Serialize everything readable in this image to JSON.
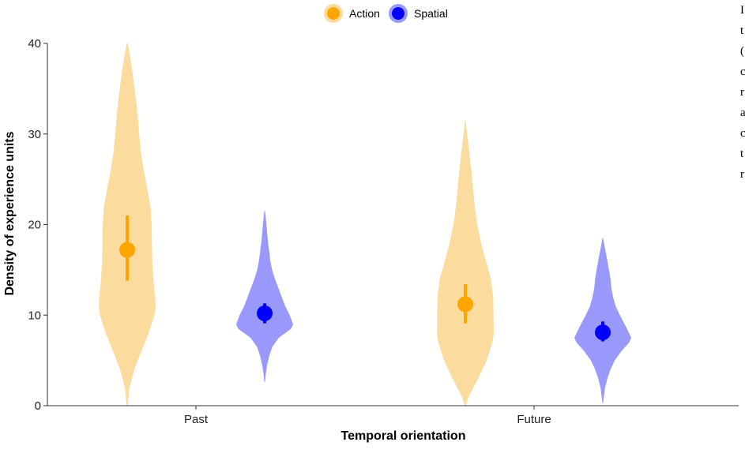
{
  "chart_data": {
    "type": "violin",
    "title": "",
    "xlabel": "Temporal orientation",
    "ylabel": "Density of experience units",
    "categories": [
      "Past",
      "Future"
    ],
    "ylim": [
      0,
      40
    ],
    "yticks": [
      0,
      10,
      20,
      30,
      40
    ],
    "grid": false,
    "legend_position": "top",
    "series": [
      {
        "name": "Action",
        "color": "#ffa500",
        "violin_color": "#fcdc9e",
        "means": [
          17.2,
          11.2
        ],
        "ci_low": [
          13.8,
          9.1
        ],
        "ci_high": [
          21.0,
          13.4
        ],
        "ranges": [
          [
            0.0,
            40.0
          ],
          [
            0.0,
            31.5
          ]
        ],
        "profiles": [
          [
            [
              0,
              0.02
            ],
            [
              2,
              0.08
            ],
            [
              4,
              0.25
            ],
            [
              6,
              0.5
            ],
            [
              8,
              0.75
            ],
            [
              10,
              0.96
            ],
            [
              11,
              1.0
            ],
            [
              12,
              0.98
            ],
            [
              14,
              0.92
            ],
            [
              16,
              0.88
            ],
            [
              18,
              0.87
            ],
            [
              20,
              0.86
            ],
            [
              22,
              0.82
            ],
            [
              24,
              0.7
            ],
            [
              26,
              0.58
            ],
            [
              28,
              0.48
            ],
            [
              30,
              0.42
            ],
            [
              32,
              0.37
            ],
            [
              34,
              0.3
            ],
            [
              36,
              0.22
            ],
            [
              38,
              0.13
            ],
            [
              40,
              0.02
            ]
          ],
          [
            [
              0,
              0.02
            ],
            [
              1,
              0.12
            ],
            [
              3,
              0.45
            ],
            [
              5,
              0.75
            ],
            [
              7,
              0.95
            ],
            [
              8,
              1.0
            ],
            [
              10,
              0.99
            ],
            [
              12,
              0.98
            ],
            [
              14,
              0.9
            ],
            [
              16,
              0.72
            ],
            [
              18,
              0.55
            ],
            [
              20,
              0.42
            ],
            [
              22,
              0.33
            ],
            [
              24,
              0.27
            ],
            [
              26,
              0.21
            ],
            [
              28,
              0.14
            ],
            [
              30,
              0.06
            ],
            [
              31.5,
              0.01
            ]
          ]
        ]
      },
      {
        "name": "Spatial",
        "color": "#0000ff",
        "violin_color": "#9999fb",
        "means": [
          10.2,
          8.1
        ],
        "ci_low": [
          9.1,
          7.1
        ],
        "ci_high": [
          11.3,
          9.3
        ],
        "ranges": [
          [
            2.6,
            21.5
          ],
          [
            0.3,
            18.5
          ]
        ],
        "profiles": [
          [
            [
              2.6,
              0.01
            ],
            [
              3.5,
              0.04
            ],
            [
              4.5,
              0.09
            ],
            [
              5.5,
              0.16
            ],
            [
              6.5,
              0.27
            ],
            [
              7.5,
              0.5
            ],
            [
              8.5,
              0.93
            ],
            [
              9,
              1.0
            ],
            [
              10,
              0.88
            ],
            [
              11,
              0.72
            ],
            [
              12,
              0.6
            ],
            [
              13,
              0.48
            ],
            [
              14,
              0.36
            ],
            [
              15,
              0.26
            ],
            [
              16,
              0.2
            ],
            [
              17,
              0.16
            ],
            [
              18,
              0.12
            ],
            [
              19,
              0.09
            ],
            [
              20,
              0.06
            ],
            [
              21,
              0.03
            ],
            [
              21.5,
              0.01
            ]
          ],
          [
            [
              0.3,
              0.01
            ],
            [
              1,
              0.04
            ],
            [
              2,
              0.08
            ],
            [
              3,
              0.16
            ],
            [
              4,
              0.27
            ],
            [
              5,
              0.42
            ],
            [
              6,
              0.65
            ],
            [
              7,
              0.93
            ],
            [
              7.5,
              1.0
            ],
            [
              8.5,
              0.85
            ],
            [
              10,
              0.6
            ],
            [
              11,
              0.45
            ],
            [
              12,
              0.36
            ],
            [
              13,
              0.3
            ],
            [
              14,
              0.27
            ],
            [
              15,
              0.22
            ],
            [
              16,
              0.16
            ],
            [
              17,
              0.1
            ],
            [
              18,
              0.04
            ],
            [
              18.5,
              0.01
            ]
          ]
        ]
      }
    ]
  },
  "side_text": [
    "I",
    "t",
    "(",
    "c",
    "r",
    "a",
    "c",
    "t",
    "r"
  ]
}
